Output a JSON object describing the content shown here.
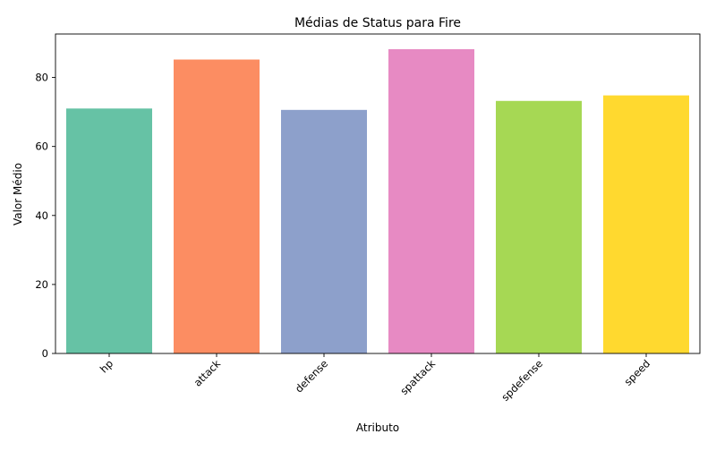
{
  "chart_data": {
    "type": "bar",
    "title": "Médias de Status para Fire",
    "xlabel": "Atributo",
    "ylabel": "Valor Médio",
    "categories": [
      "hp",
      "attack",
      "defense",
      "spattack",
      "spdefense",
      "speed"
    ],
    "values": [
      71.0,
      85.2,
      70.6,
      88.2,
      73.2,
      74.8
    ],
    "colors": [
      "#66c2a5",
      "#fc8d62",
      "#8da0cb",
      "#e78ac3",
      "#a6d854",
      "#ffd92f"
    ],
    "ylim": [
      0,
      92.6
    ],
    "yticks": [
      0,
      20,
      40,
      60,
      80
    ],
    "ytick_labels": [
      "0",
      "20",
      "40",
      "60",
      "80"
    ],
    "grid": false,
    "xtick_rotation_deg": 45
  }
}
